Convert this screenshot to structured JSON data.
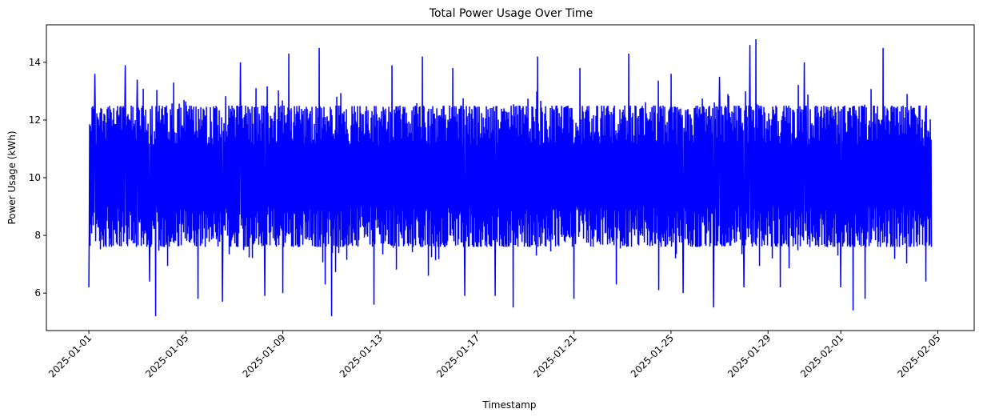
{
  "chart_data": {
    "type": "line",
    "title": "Total Power Usage Over Time",
    "xlabel": "Timestamp",
    "ylabel": "Power Usage (kWh)",
    "x_range": [
      "2025-01-01",
      "2025-02-04T18:00"
    ],
    "xlim": [
      "2024-12-30T06:00",
      "2025-02-06T12:00"
    ],
    "ylim": [
      4.7,
      15.3
    ],
    "x_ticks": [
      "2025-01-01",
      "2025-01-05",
      "2025-01-09",
      "2025-01-13",
      "2025-01-17",
      "2025-01-21",
      "2025-01-25",
      "2025-01-29",
      "2025-02-01",
      "2025-02-05"
    ],
    "y_ticks": [
      6,
      8,
      10,
      12,
      14
    ],
    "grid": false,
    "legend": "none",
    "series": [
      {
        "color": "#0000ff",
        "band": {
          "low": 7.6,
          "high": 12.5,
          "center": 10.0
        },
        "peaks": [
          [
            "2025-01-01T06:00",
            13.6
          ],
          [
            "2025-01-02T12:00",
            13.9
          ],
          [
            "2025-01-03T00:00",
            13.4
          ],
          [
            "2025-01-04T12:00",
            13.3
          ],
          [
            "2025-01-06T12:00",
            13.4
          ],
          [
            "2025-01-07T06:00",
            14.0
          ],
          [
            "2025-01-08T06:00",
            13.4
          ],
          [
            "2025-01-09T06:00",
            14.3
          ],
          [
            "2025-01-10T12:00",
            14.5
          ],
          [
            "2025-01-12T18:00",
            13.9
          ],
          [
            "2025-01-13T12:00",
            13.9
          ],
          [
            "2025-01-14T18:00",
            14.2
          ],
          [
            "2025-01-16T00:00",
            13.8
          ],
          [
            "2025-01-17T18:00",
            14.4
          ],
          [
            "2025-01-19T12:00",
            14.2
          ],
          [
            "2025-01-21T06:00",
            13.8
          ],
          [
            "2025-01-23T06:00",
            14.3
          ],
          [
            "2025-01-25T00:00",
            13.6
          ],
          [
            "2025-01-27T00:00",
            13.5
          ],
          [
            "2025-01-28T06:00",
            14.6
          ],
          [
            "2025-01-28T12:00",
            14.8
          ],
          [
            "2025-01-30T12:00",
            14.0
          ],
          [
            "2025-02-01T00:00",
            14.3
          ],
          [
            "2025-02-02T18:00",
            14.5
          ],
          [
            "2025-02-04T12:00",
            13.8
          ]
        ],
        "troughs": [
          [
            "2025-01-01T00:00",
            6.2
          ],
          [
            "2025-01-03T12:00",
            6.4
          ],
          [
            "2025-01-03T18:00",
            5.2
          ],
          [
            "2025-01-05T12:00",
            5.8
          ],
          [
            "2025-01-06T12:00",
            5.7
          ],
          [
            "2025-01-08T06:00",
            5.9
          ],
          [
            "2025-01-09T00:00",
            6.0
          ],
          [
            "2025-01-10T18:00",
            6.3
          ],
          [
            "2025-01-11T00:00",
            5.2
          ],
          [
            "2025-01-12T18:00",
            5.6
          ],
          [
            "2025-01-15T00:00",
            6.6
          ],
          [
            "2025-01-16T12:00",
            5.9
          ],
          [
            "2025-01-17T18:00",
            5.9
          ],
          [
            "2025-01-18T12:00",
            5.5
          ],
          [
            "2025-01-21T00:00",
            5.8
          ],
          [
            "2025-01-22T18:00",
            6.3
          ],
          [
            "2025-01-24T12:00",
            6.1
          ],
          [
            "2025-01-25T12:00",
            6.0
          ],
          [
            "2025-01-26T18:00",
            5.5
          ],
          [
            "2025-01-28T00:00",
            6.2
          ],
          [
            "2025-01-29T12:00",
            6.2
          ],
          [
            "2025-02-01T00:00",
            6.2
          ],
          [
            "2025-02-01T12:00",
            5.4
          ],
          [
            "2025-02-02T00:00",
            5.8
          ],
          [
            "2025-02-04T12:00",
            6.4
          ]
        ]
      }
    ]
  }
}
